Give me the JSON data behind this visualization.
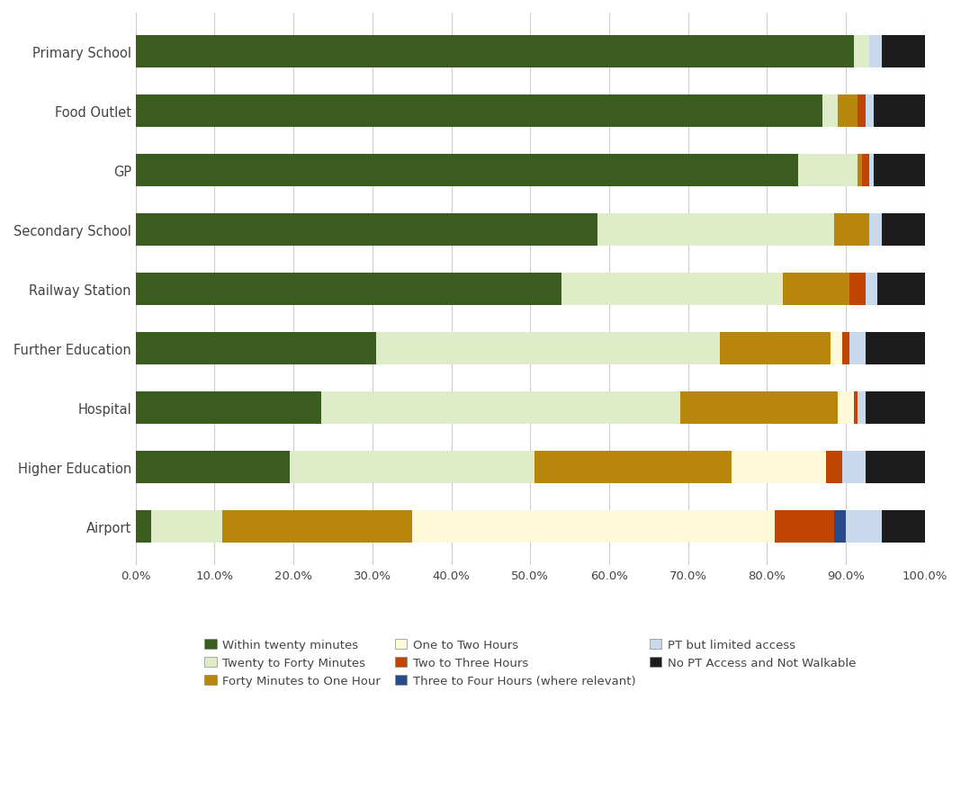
{
  "categories": [
    "Primary School",
    "Food Outlet",
    "GP",
    "Secondary School",
    "Railway Station",
    "Further Education",
    "Hospital",
    "Higher Education",
    "Airport"
  ],
  "series": {
    "Within twenty minutes": [
      91.0,
      87.0,
      84.0,
      58.5,
      54.0,
      30.5,
      23.5,
      19.5,
      2.0
    ],
    "Twenty to Forty Minutes": [
      2.0,
      2.0,
      7.5,
      30.0,
      28.0,
      43.5,
      45.5,
      31.0,
      9.0
    ],
    "Forty Minutes to One Hour": [
      0.0,
      2.5,
      0.5,
      4.5,
      8.5,
      14.0,
      20.0,
      25.0,
      24.0
    ],
    "One to Two Hours": [
      0.0,
      0.0,
      0.0,
      0.0,
      0.0,
      1.5,
      2.0,
      12.0,
      46.0
    ],
    "Two to Three Hours": [
      0.0,
      1.0,
      1.0,
      0.0,
      2.0,
      1.0,
      0.5,
      2.0,
      7.5
    ],
    "Three to Four Hours (where relevant)": [
      0.0,
      0.0,
      0.0,
      0.0,
      0.0,
      0.0,
      0.0,
      0.0,
      1.5
    ],
    "PT but limited access": [
      1.5,
      1.0,
      0.5,
      1.5,
      1.5,
      2.0,
      1.0,
      3.0,
      4.5
    ],
    "No PT Access and Not Walkable": [
      5.5,
      6.5,
      6.5,
      5.5,
      6.0,
      7.5,
      7.5,
      7.5,
      5.5
    ]
  },
  "colors": {
    "Within twenty minutes": "#3a5c1f",
    "Twenty to Forty Minutes": "#deecc8",
    "Forty Minutes to One Hour": "#b8860b",
    "One to Two Hours": "#fef9d9",
    "Two to Three Hours": "#bf4500",
    "Three to Four Hours (where relevant)": "#2b4a8c",
    "PT but limited access": "#c8d9ee",
    "No PT Access and Not Walkable": "#1c1c1c"
  },
  "xlim": [
    0,
    100
  ],
  "xtick_labels": [
    "0.0%",
    "10.0%",
    "20.0%",
    "30.0%",
    "40.0%",
    "50.0%",
    "60.0%",
    "70.0%",
    "80.0%",
    "90.0%",
    "100.0%"
  ],
  "xtick_values": [
    0,
    10,
    20,
    30,
    40,
    50,
    60,
    70,
    80,
    90,
    100
  ],
  "background_color": "#ffffff",
  "legend_order": [
    "Within twenty minutes",
    "Twenty to Forty Minutes",
    "Forty Minutes to One Hour",
    "One to Two Hours",
    "Two to Three Hours",
    "Three to Four Hours (where relevant)",
    "PT but limited access",
    "No PT Access and Not Walkable"
  ]
}
